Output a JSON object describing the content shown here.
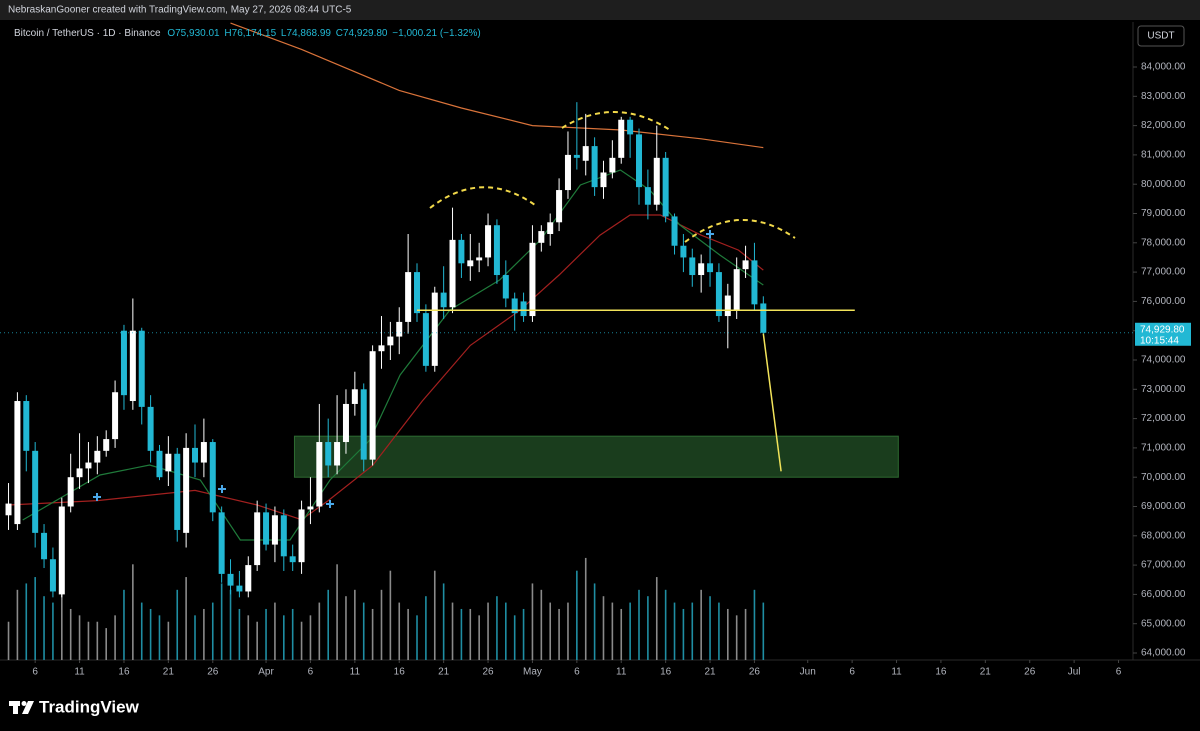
{
  "header": {
    "credit": "NebraskanGooner created with TradingView.com, May 27, 2026 08:44 UTC-5",
    "symbol": "Bitcoin / TetherUS · 1D · Binance",
    "ohlc": [
      {
        "label": "O",
        "value": "75,930.01"
      },
      {
        "label": "H",
        "value": "76,174.15"
      },
      {
        "label": "L",
        "value": "74,868.99"
      },
      {
        "label": "C",
        "value": "74,929.80"
      }
    ],
    "change": "−1,000.21 (−1.32%)",
    "currency": "USDT",
    "price_tag": {
      "price": "74,929.80",
      "countdown": "10:15:44"
    },
    "brand": "TradingView"
  },
  "chart_data": {
    "type": "candlestick",
    "up_color": "#ffffff",
    "down_color": "#22b8d4",
    "xlim": [
      61.04,
      188.63
    ],
    "ylim": [
      63761,
      85536
    ],
    "grid": false,
    "xticks": [
      {
        "value": 65,
        "label": "6"
      },
      {
        "value": 70,
        "label": "11"
      },
      {
        "value": 75,
        "label": "16"
      },
      {
        "value": 80,
        "label": "21"
      },
      {
        "value": 85,
        "label": "26"
      },
      {
        "value": 91,
        "label": "Apr"
      },
      {
        "value": 96,
        "label": "6"
      },
      {
        "value": 101,
        "label": "11"
      },
      {
        "value": 106,
        "label": "16"
      },
      {
        "value": 111,
        "label": "21"
      },
      {
        "value": 116,
        "label": "26"
      },
      {
        "value": 121,
        "label": "May"
      },
      {
        "value": 126,
        "label": "6"
      },
      {
        "value": 131,
        "label": "11"
      },
      {
        "value": 136,
        "label": "16"
      },
      {
        "value": 141,
        "label": "21"
      },
      {
        "value": 146,
        "label": "26"
      },
      {
        "value": 152,
        "label": "Jun"
      },
      {
        "value": 157,
        "label": "6"
      },
      {
        "value": 162,
        "label": "11"
      },
      {
        "value": 167,
        "label": "16"
      },
      {
        "value": 172,
        "label": "21"
      },
      {
        "value": 177,
        "label": "26"
      },
      {
        "value": 182,
        "label": "Jul"
      },
      {
        "value": 187,
        "label": "6"
      }
    ],
    "yticks": [
      {
        "value": 64000,
        "label": "64,000.00"
      },
      {
        "value": 65000,
        "label": "65,000.00"
      },
      {
        "value": 66000,
        "label": "66,000.00"
      },
      {
        "value": 67000,
        "label": "67,000.00"
      },
      {
        "value": 68000,
        "label": "68,000.00"
      },
      {
        "value": 69000,
        "label": "69,000.00"
      },
      {
        "value": 70000,
        "label": "70,000.00"
      },
      {
        "value": 71000,
        "label": "71,000.00"
      },
      {
        "value": 72000,
        "label": "72,000.00"
      },
      {
        "value": 73000,
        "label": "73,000.00"
      },
      {
        "value": 74000,
        "label": "74,000.00"
      },
      {
        "value": 75000,
        "label": "75,000.00"
      },
      {
        "value": 76000,
        "label": "76,000.00"
      },
      {
        "value": 77000,
        "label": "77,000.00"
      },
      {
        "value": 78000,
        "label": "78,000.00"
      },
      {
        "value": 79000,
        "label": "79,000.00"
      },
      {
        "value": 80000,
        "label": "80,000.00"
      },
      {
        "value": 81000,
        "label": "81,000.00"
      },
      {
        "value": 82000,
        "label": "82,000.00"
      },
      {
        "value": 83000,
        "label": "83,000.00"
      },
      {
        "value": 84000,
        "label": "84,000.00"
      }
    ],
    "x": [
      62,
      63,
      64,
      65,
      66,
      67,
      68,
      69,
      70,
      71,
      72,
      73,
      74,
      75,
      76,
      77,
      78,
      79,
      80,
      81,
      82,
      83,
      84,
      85,
      86,
      87,
      88,
      89,
      90,
      91,
      92,
      93,
      94,
      95,
      96,
      97,
      98,
      99,
      100,
      101,
      102,
      103,
      104,
      105,
      106,
      107,
      108,
      109,
      110,
      111,
      112,
      113,
      114,
      115,
      116,
      117,
      118,
      119,
      120,
      121,
      122,
      123,
      124,
      125,
      126,
      127,
      128,
      129,
      130,
      131,
      132,
      133,
      134,
      135,
      136,
      137,
      138,
      139,
      140,
      141,
      142,
      143,
      144,
      145,
      146,
      147
    ],
    "open": [
      68700,
      68400,
      72600,
      70900,
      68100,
      67200,
      66000,
      69000,
      70000,
      70300,
      70500,
      70900,
      71300,
      75000,
      72600,
      75000,
      72400,
      70900,
      70200,
      70800,
      68100,
      71000,
      70500,
      71200,
      68800,
      66700,
      66300,
      66100,
      67000,
      68800,
      67700,
      68700,
      67300,
      67100,
      68900,
      69000,
      71200,
      70400,
      71200,
      72500,
      73000,
      70600,
      74300,
      74500,
      74800,
      75300,
      77000,
      75600,
      73800,
      76300,
      75800,
      78100,
      77200,
      77400,
      77500,
      78600,
      76900,
      76100,
      76000,
      75500,
      78000,
      78300,
      78700,
      79800,
      81000,
      80800,
      81300,
      79900,
      80400,
      80900,
      82200,
      81700,
      79900,
      79300,
      80900,
      78900,
      77900,
      77500,
      76900,
      77300,
      77000,
      75500,
      75700,
      77100,
      77400,
      75930.01
    ],
    "high": [
      69800,
      72900,
      72800,
      71200,
      68400,
      67600,
      69300,
      70800,
      71500,
      71200,
      71400,
      71600,
      73300,
      75200,
      76100,
      75100,
      72800,
      71100,
      71400,
      71000,
      71500,
      71800,
      72000,
      71300,
      69000,
      67200,
      66800,
      67300,
      69200,
      69100,
      69000,
      68900,
      67700,
      69200,
      70000,
      72500,
      72000,
      72800,
      73000,
      73600,
      73200,
      74500,
      75500,
      75300,
      75800,
      78300,
      77300,
      75900,
      76500,
      77200,
      79200,
      78300,
      78300,
      78000,
      79000,
      78800,
      77400,
      76300,
      76300,
      78600,
      78600,
      79000,
      80200,
      81800,
      82800,
      82400,
      81600,
      80800,
      81500,
      82300,
      82300,
      81900,
      80500,
      82000,
      81100,
      79000,
      78300,
      77800,
      77600,
      78200,
      77300,
      76600,
      77500,
      77900,
      78000,
      76174.15
    ],
    "low": [
      68200,
      68200,
      70200,
      67600,
      66900,
      65900,
      65900,
      68800,
      69600,
      69800,
      70100,
      70700,
      71000,
      72300,
      72300,
      71800,
      70500,
      69900,
      69700,
      67800,
      67600,
      70000,
      70000,
      68500,
      66400,
      66000,
      65900,
      65900,
      66800,
      67500,
      67100,
      66800,
      66800,
      66700,
      68400,
      68800,
      70000,
      70100,
      70800,
      72100,
      70200,
      70400,
      73700,
      74000,
      74200,
      74900,
      75300,
      73600,
      73600,
      75400,
      75600,
      76800,
      76700,
      77000,
      77200,
      76600,
      75800,
      75000,
      75300,
      75300,
      77700,
      77900,
      78400,
      79500,
      80500,
      80300,
      79600,
      79500,
      80200,
      80700,
      80900,
      79300,
      78800,
      79100,
      78700,
      77600,
      77000,
      76500,
      76300,
      76500,
      75300,
      74400,
      75400,
      76800,
      75700,
      74868.99
    ],
    "close": [
      69100,
      72600,
      70900,
      68100,
      67200,
      66100,
      69000,
      70000,
      70300,
      70500,
      70900,
      71300,
      72900,
      72800,
      75000,
      72400,
      70900,
      70000,
      70800,
      68200,
      71000,
      70500,
      71200,
      68800,
      66700,
      66300,
      66100,
      67000,
      68800,
      67700,
      68700,
      67300,
      67100,
      68900,
      69000,
      71200,
      70400,
      71200,
      72500,
      73000,
      70600,
      74300,
      74500,
      74800,
      75300,
      77000,
      75600,
      73800,
      76300,
      75800,
      78100,
      77300,
      77400,
      77500,
      78600,
      76900,
      76100,
      75600,
      75500,
      78000,
      78400,
      78700,
      79800,
      81000,
      80900,
      81300,
      79900,
      80400,
      80900,
      82200,
      81700,
      79900,
      79300,
      80900,
      78900,
      77900,
      77500,
      76900,
      77300,
      77000,
      75500,
      76200,
      77100,
      77400,
      75900,
      74929.8
    ],
    "volume": [
      30,
      55,
      60,
      65,
      50,
      45,
      55,
      40,
      35,
      30,
      30,
      25,
      35,
      55,
      75,
      45,
      40,
      35,
      30,
      55,
      65,
      35,
      40,
      45,
      60,
      55,
      40,
      35,
      30,
      40,
      45,
      35,
      40,
      30,
      35,
      45,
      55,
      75,
      50,
      55,
      45,
      40,
      55,
      70,
      45,
      40,
      35,
      50,
      70,
      60,
      45,
      40,
      40,
      35,
      45,
      50,
      45,
      35,
      40,
      60,
      55,
      45,
      40,
      45,
      70,
      80,
      60,
      50,
      45,
      40,
      45,
      55,
      50,
      65,
      55,
      45,
      40,
      45,
      55,
      50,
      45,
      40,
      35,
      40,
      55,
      45
    ],
    "volume_lim": [
      0,
      125
    ],
    "lines": [
      {
        "color": "#d9733a",
        "x": [
          87,
          95,
          106,
          113,
          121,
          131,
          140,
          147
        ],
        "values": [
          85500,
          84600,
          83200,
          82600,
          82000,
          81850,
          81550,
          81250
        ]
      },
      {
        "color": "#a3201f",
        "x": [
          62,
          72,
          83,
          90,
          95,
          98,
          103,
          108.6,
          114,
          119.6,
          124,
          128.6,
          132,
          135.4,
          140,
          144.2,
          147
        ],
        "values": [
          69050,
          69200,
          69550,
          69050,
          68550,
          69200,
          70400,
          72600,
          74500,
          75700,
          76900,
          78260,
          78950,
          78950,
          78260,
          77750,
          77070
        ]
      },
      {
        "color": "#1f7a3a",
        "x": [
          63.6,
          72.3,
          77.9,
          83.6,
          88.1,
          93.7,
          98.2,
          102.7,
          106.1,
          111.7,
          117.3,
          121.9,
          126.4,
          130.9,
          134.2,
          137.6,
          142.1,
          147
        ],
        "values": [
          68540,
          70075,
          70416,
          69905,
          67857,
          67857,
          69905,
          71270,
          73488,
          75706,
          76730,
          78096,
          79973,
          80485,
          79802,
          78608,
          77584,
          76560
        ]
      }
    ],
    "zone": {
      "color": "#1d4420",
      "x": [
        94.2,
        162.2
      ],
      "low": 70000,
      "high": 71400
    },
    "support": {
      "color": "#f2e35a",
      "x": [
        108,
        157.3
      ],
      "value": 75700
    },
    "projection": {
      "color": "#f2e35a",
      "x": [
        147,
        149
      ],
      "values": [
        74900,
        70200
      ]
    }
  }
}
